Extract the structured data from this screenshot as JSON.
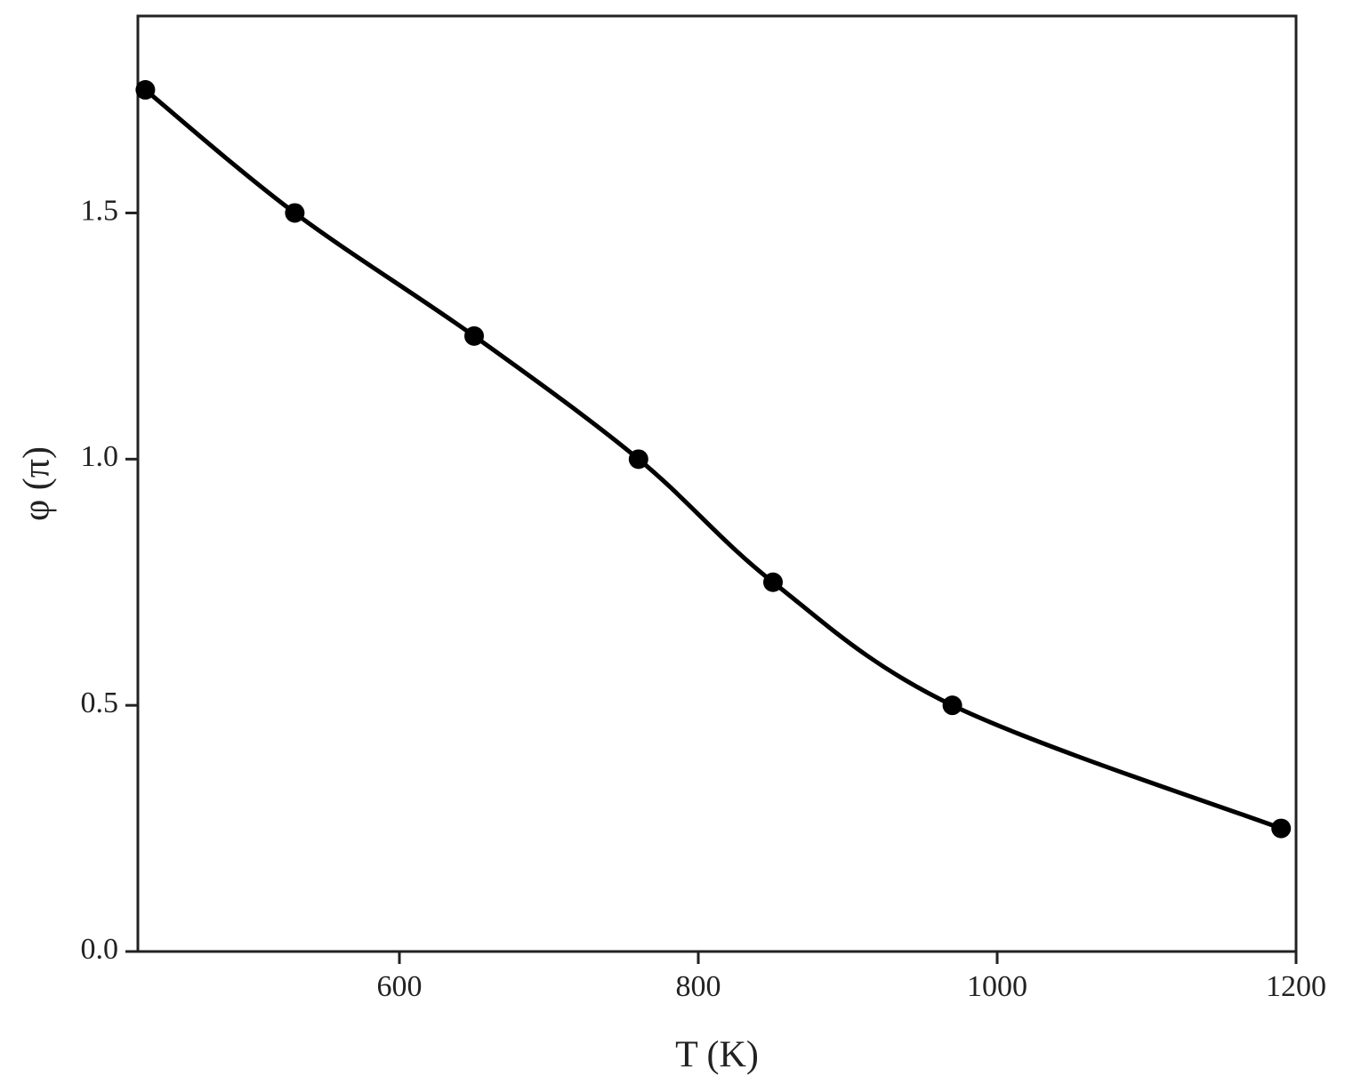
{
  "chart_data": {
    "type": "line",
    "x_label": "T (K)",
    "y_label": "φ (π)",
    "x": [
      430,
      530,
      650,
      760,
      850,
      970,
      1190
    ],
    "series": [
      {
        "color": "#000000",
        "values": [
          1.75,
          1.5,
          1.25,
          1.0,
          0.75,
          0.5,
          0.25
        ]
      }
    ],
    "xlim": [
      425,
      1200
    ],
    "xticks": [
      600,
      800,
      1000,
      1200
    ],
    "ylim": [
      0,
      1.9
    ],
    "yticks": [
      {
        "value": 0,
        "label": "0.0"
      },
      0.5,
      {
        "value": 1,
        "label": "1.0"
      },
      1.5
    ],
    "markers": true,
    "smooth": true
  }
}
